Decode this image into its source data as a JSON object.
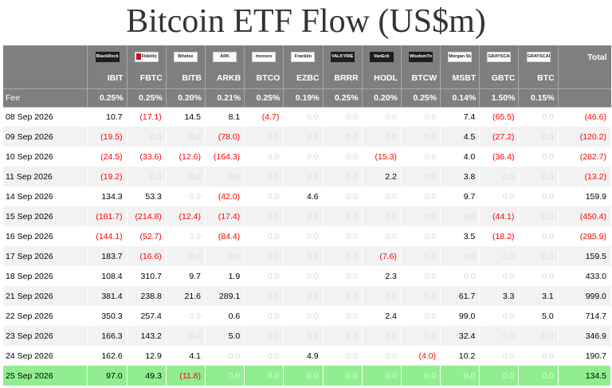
{
  "title": "Bitcoin ETF Flow (US$m)",
  "colors": {
    "header_bg": "#7f7f7f",
    "negative": "#ff0000",
    "zero": "#d9d9d9",
    "highlight_row": "#90ee90"
  },
  "header": {
    "total_label": "Total",
    "fee_label": "Fee",
    "funds": [
      {
        "logo": "BlackRock",
        "logo_icon": "blackrock-logo",
        "ticker": "IBIT",
        "fee": "0.25%"
      },
      {
        "logo": "Fidelity",
        "logo_icon": "fidelity-logo",
        "ticker": "FBTC",
        "fee": "0.25%"
      },
      {
        "logo": "Bitwise",
        "logo_icon": "bitwise-logo",
        "ticker": "BITB",
        "fee": "0.20%"
      },
      {
        "logo": "ARK",
        "logo_icon": "ark-logo",
        "ticker": "ARKB",
        "fee": "0.21%"
      },
      {
        "logo": "Invesco",
        "logo_icon": "invesco-logo",
        "ticker": "BTCO",
        "fee": "0.25%"
      },
      {
        "logo": "Franklin",
        "logo_icon": "franklin-logo",
        "ticker": "EZBC",
        "fee": "0.19%"
      },
      {
        "logo": "VALKYRIE",
        "logo_icon": "valkyrie-logo",
        "ticker": "BRRR",
        "fee": "0.25%"
      },
      {
        "logo": "VanEck",
        "logo_icon": "vaneck-logo",
        "ticker": "HODL",
        "fee": "0.20%"
      },
      {
        "logo": "WisdomTree",
        "logo_icon": "wisdomtree-logo",
        "ticker": "BTCW",
        "fee": "0.25%"
      },
      {
        "logo": "Morgan Stanley",
        "logo_icon": "morgan-stanley-logo",
        "ticker": "MSBT",
        "fee": "0.14%"
      },
      {
        "logo": "GRAYSCALE",
        "logo_icon": "grayscale-logo",
        "ticker": "GBTC",
        "fee": "1.50%"
      },
      {
        "logo": "GRAYSCALE",
        "logo_icon": "grayscale-logo",
        "ticker": "BTC",
        "fee": "0.15%"
      }
    ]
  },
  "rows": [
    {
      "date": "08 Sep 2026",
      "values": [
        "10.7",
        "(17.1)",
        "14.5",
        "8.1",
        "(4.7)",
        "0.0",
        "0.0",
        "0.0",
        "0.0",
        "7.4",
        "(65.5)",
        "0.0"
      ],
      "total": "(46.6)"
    },
    {
      "date": "09 Sep 2026",
      "values": [
        "(19.5)",
        "0.0",
        "0.0",
        "(78.0)",
        "0.0",
        "0.0",
        "0.0",
        "0.0",
        "0.0",
        "4.5",
        "(27.2)",
        "0.0"
      ],
      "total": "(120.2)"
    },
    {
      "date": "10 Sep 2026",
      "values": [
        "(24.5)",
        "(33.6)",
        "(12.6)",
        "(164.3)",
        "0.0",
        "0.0",
        "0.0",
        "(15.3)",
        "0.0",
        "4.0",
        "(36.4)",
        "0.0"
      ],
      "total": "(282.7)"
    },
    {
      "date": "11 Sep 2026",
      "values": [
        "(19.2)",
        "0.0",
        "0.0",
        "0.0",
        "0.0",
        "0.0",
        "0.0",
        "2.2",
        "0.0",
        "3.8",
        "0.0",
        "0.0"
      ],
      "total": "(13.2)"
    },
    {
      "date": "14 Sep 2026",
      "values": [
        "134.3",
        "53.3",
        "0.0",
        "(42.0)",
        "0.0",
        "4.6",
        "0.0",
        "0.0",
        "0.0",
        "9.7",
        "0.0",
        "0.0"
      ],
      "total": "159.9"
    },
    {
      "date": "15 Sep 2026",
      "values": [
        "(161.7)",
        "(214.8)",
        "(12.4)",
        "(17.4)",
        "0.0",
        "0.0",
        "0.0",
        "0.0",
        "0.0",
        "0.0",
        "(44.1)",
        "0.0"
      ],
      "total": "(450.4)"
    },
    {
      "date": "16 Sep 2026",
      "values": [
        "(144.1)",
        "(52.7)",
        "0.0",
        "(84.4)",
        "0.0",
        "0.0",
        "0.0",
        "0.0",
        "0.0",
        "3.5",
        "(18.2)",
        "0.0"
      ],
      "total": "(295.9)"
    },
    {
      "date": "17 Sep 2026",
      "values": [
        "183.7",
        "(16.6)",
        "0.0",
        "0.0",
        "0.0",
        "0.0",
        "0.0",
        "(7.6)",
        "0.0",
        "0.0",
        "0.0",
        "0.0"
      ],
      "total": "159.5"
    },
    {
      "date": "18 Sep 2026",
      "values": [
        "108.4",
        "310.7",
        "9.7",
        "1.9",
        "0.0",
        "0.0",
        "0.0",
        "2.3",
        "0.0",
        "0.0",
        "0.0",
        "0.0"
      ],
      "total": "433.0"
    },
    {
      "date": "21 Sep 2026",
      "values": [
        "381.4",
        "238.8",
        "21.6",
        "289.1",
        "0.0",
        "0.0",
        "0.0",
        "0.0",
        "0.0",
        "61.7",
        "3.3",
        "3.1"
      ],
      "total": "999.0"
    },
    {
      "date": "22 Sep 2026",
      "values": [
        "350.3",
        "257.4",
        "0.0",
        "0.6",
        "0.0",
        "0.0",
        "0.0",
        "2.4",
        "0.0",
        "99.0",
        "0.0",
        "5.0"
      ],
      "total": "714.7"
    },
    {
      "date": "23 Sep 2026",
      "values": [
        "166.3",
        "143.2",
        "0.0",
        "5.0",
        "0.0",
        "0.0",
        "0.0",
        "0.0",
        "0.0",
        "32.4",
        "0.0",
        "0.0"
      ],
      "total": "346.9"
    },
    {
      "date": "24 Sep 2026",
      "values": [
        "162.6",
        "12.9",
        "4.1",
        "0.0",
        "0.0",
        "4.9",
        "0.0",
        "0.0",
        "(4.0)",
        "10.2",
        "0.0",
        "0.0"
      ],
      "total": "190.7"
    },
    {
      "date": "25 Sep 2026",
      "values": [
        "97.0",
        "49.3",
        "(11.8)",
        "0.0",
        "0.0",
        "0.0",
        "0.0",
        "0.0",
        "0.0",
        "0.0",
        "0.0",
        "0.0"
      ],
      "total": "134.5",
      "highlight": true
    }
  ]
}
